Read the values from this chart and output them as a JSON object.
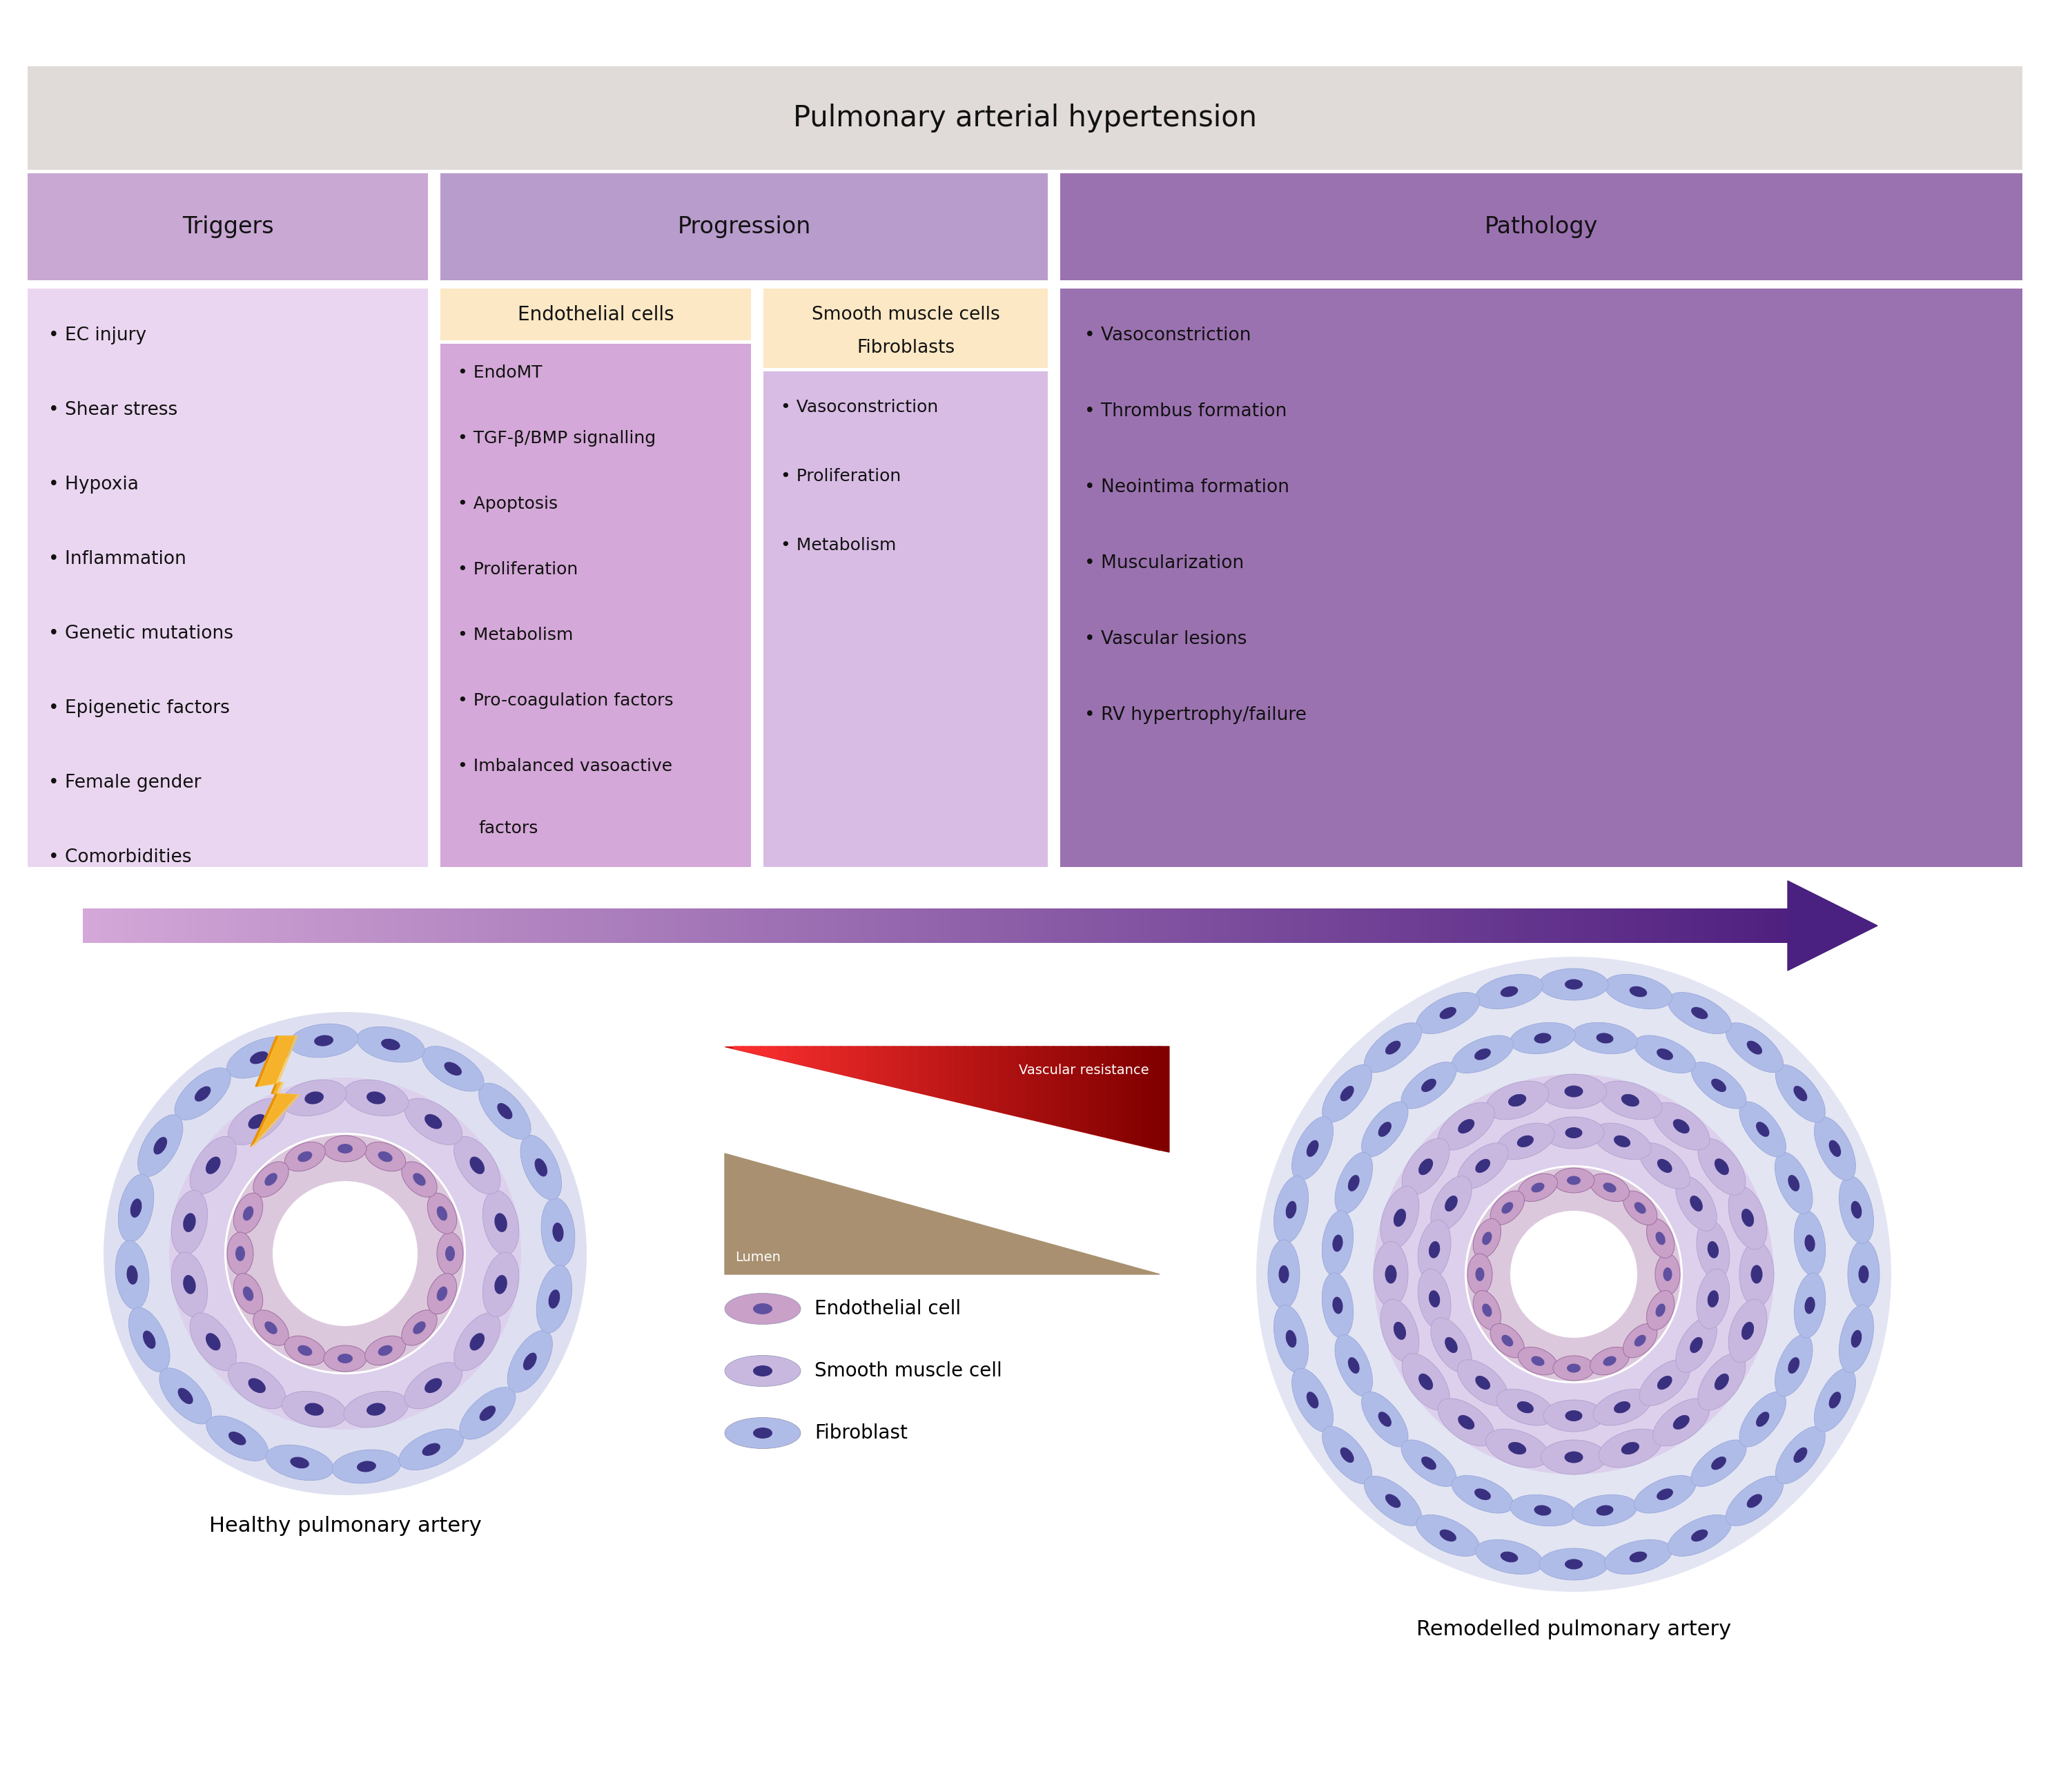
{
  "title": "Pulmonary arterial hypertension",
  "title_bg": "#e0dbd8",
  "col_headers": [
    "Triggers",
    "Progression",
    "Pathology"
  ],
  "col_colors": [
    "#c9a8d4",
    "#b89ccc",
    "#9b72b0"
  ],
  "triggers_bg": "#ead6f0",
  "triggers_items": [
    "EC injury",
    "Shear stress",
    "Hypoxia",
    "Inflammation",
    "Genetic mutations",
    "Epigenetic factors",
    "Female gender",
    "Comorbidities"
  ],
  "endo_header": "Endothelial cells",
  "endo_header_bg": "#fce8c4",
  "endo_bg": "#d4a8d8",
  "endo_items": [
    "EndoMT",
    "TGF-β/BMP signalling",
    "Apoptosis",
    "Proliferation",
    "Metabolism",
    "Pro-coagulation factors",
    "Imbalanced vasoactive\n   factors"
  ],
  "smc_header1": "Smooth muscle cells",
  "smc_header2": "Fibroblasts",
  "smc_header_bg": "#fce8c4",
  "smc_bg": "#d8bce4",
  "smc_items": [
    "Vasoconstriction",
    "Proliferation",
    "Metabolism"
  ],
  "pathology_bg": "#9b72b0",
  "pathology_items": [
    "Vasoconstriction",
    "Thrombus formation",
    "Neointima formation",
    "Muscularization",
    "Vascular lesions",
    "RV hypertrophy/failure"
  ],
  "healthy_label": "Healthy pulmonary artery",
  "remodelled_label": "Remodelled pulmonary artery",
  "vascular_resistance_label": "Vascular resistance",
  "lumen_label": "Lumen",
  "legend_items": [
    {
      "label": "Endothelial cell",
      "color": "#c8a0c8",
      "nucleus": "#5040a0"
    },
    {
      "label": "Smooth muscle cell",
      "color": "#c8b8e0",
      "nucleus": "#3a3080"
    },
    {
      "label": "Fibroblast",
      "color": "#a8b8e8",
      "nucleus": "#3a3080"
    }
  ],
  "bg": "#ffffff"
}
